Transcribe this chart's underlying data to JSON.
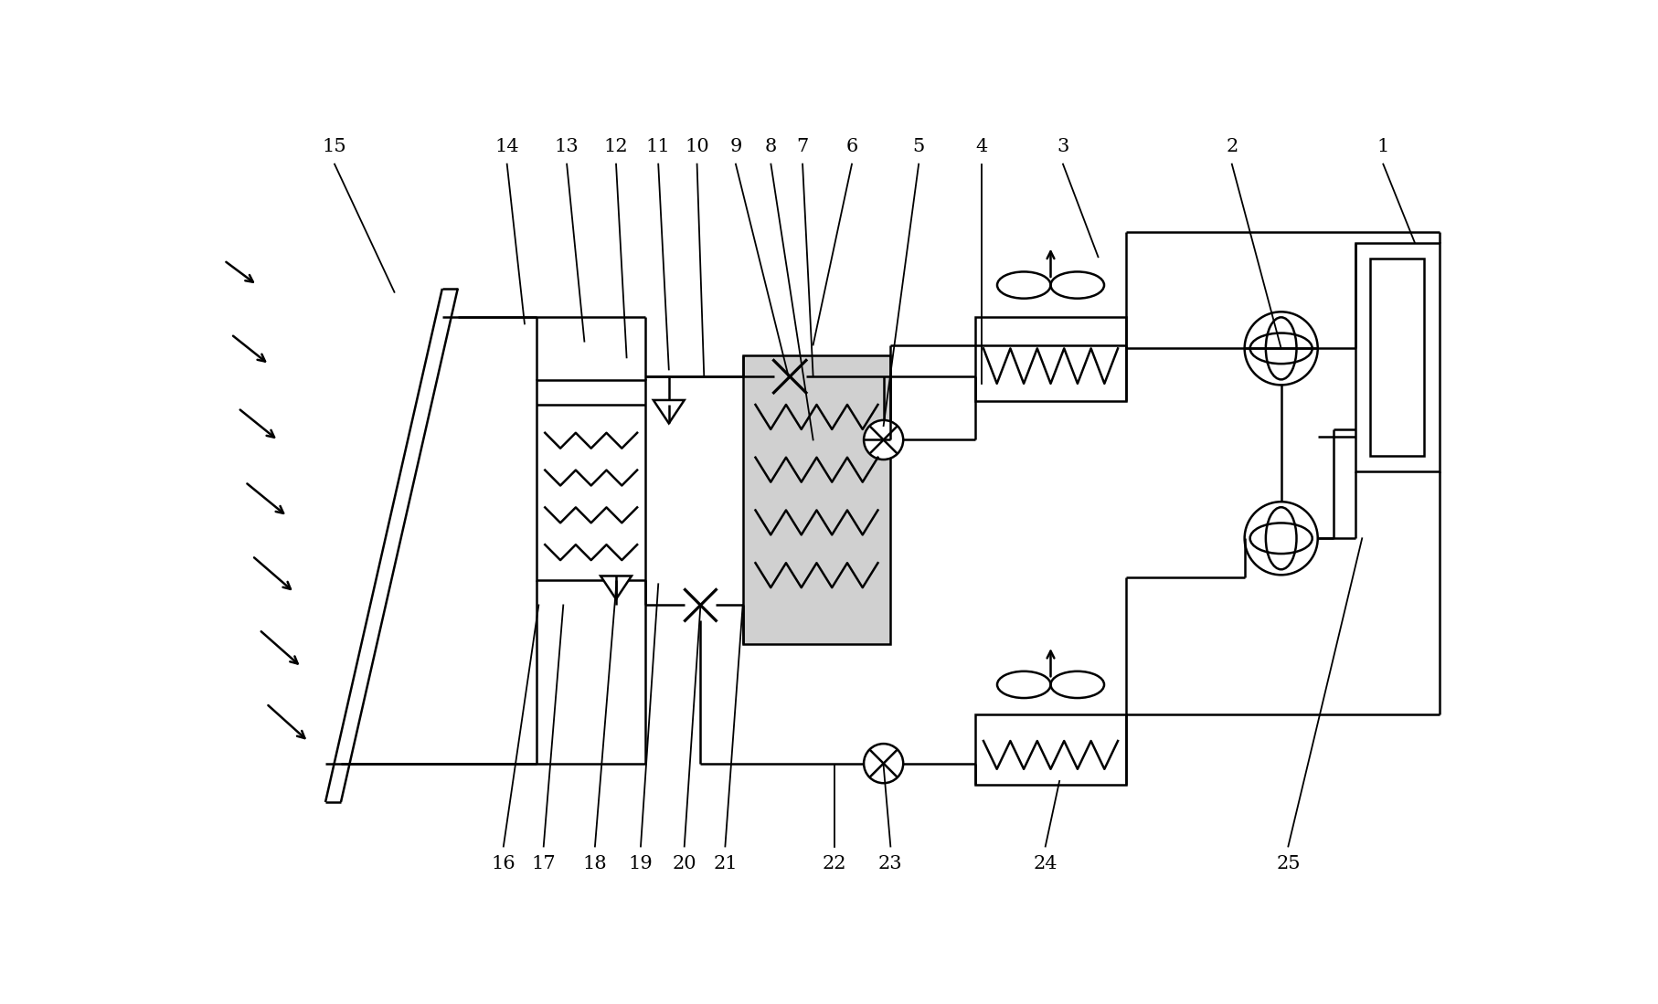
{
  "bg": "#ffffff",
  "lc": "#000000",
  "lw": 1.8,
  "fs": 15,
  "fw": 18.14,
  "fh": 10.99,
  "dpi": 100,
  "solar_arrows": [
    [
      0.18,
      9.0,
      0.65,
      8.65
    ],
    [
      0.28,
      7.95,
      0.82,
      7.52
    ],
    [
      0.38,
      6.9,
      0.95,
      6.44
    ],
    [
      0.48,
      5.85,
      1.08,
      5.36
    ],
    [
      0.58,
      4.8,
      1.18,
      4.28
    ],
    [
      0.68,
      3.75,
      1.28,
      3.22
    ],
    [
      0.78,
      2.7,
      1.38,
      2.16
    ]
  ],
  "top_labels": [
    [
      "15",
      1.75,
      10.62,
      2.6,
      8.55
    ],
    [
      "14",
      4.2,
      10.62,
      4.45,
      8.1
    ],
    [
      "13",
      5.05,
      10.62,
      5.3,
      7.85
    ],
    [
      "12",
      5.75,
      10.62,
      5.9,
      7.62
    ],
    [
      "11",
      6.35,
      10.62,
      6.5,
      7.45
    ],
    [
      "10",
      6.9,
      10.62,
      7.0,
      7.35
    ],
    [
      "9",
      7.45,
      10.62,
      8.2,
      7.35
    ],
    [
      "8",
      7.95,
      10.62,
      8.55,
      6.45
    ],
    [
      "7",
      8.4,
      10.62,
      8.55,
      7.35
    ],
    [
      "6",
      9.1,
      10.62,
      8.55,
      7.8
    ],
    [
      "5",
      10.05,
      10.62,
      9.55,
      6.65
    ],
    [
      "4",
      10.95,
      10.62,
      10.95,
      7.25
    ],
    [
      "3",
      12.1,
      10.62,
      12.6,
      9.05
    ],
    [
      "2",
      14.5,
      10.62,
      15.2,
      7.75
    ],
    [
      "1",
      16.65,
      10.62,
      17.1,
      9.25
    ]
  ],
  "bot_labels": [
    [
      "16",
      4.15,
      0.42,
      4.65,
      4.1
    ],
    [
      "17",
      4.72,
      0.42,
      5.0,
      4.1
    ],
    [
      "18",
      5.45,
      0.42,
      5.75,
      4.35
    ],
    [
      "19",
      6.1,
      0.42,
      6.35,
      4.4
    ],
    [
      "20",
      6.72,
      0.42,
      6.95,
      4.1
    ],
    [
      "21",
      7.3,
      0.42,
      7.55,
      4.1
    ],
    [
      "22",
      8.85,
      0.42,
      8.85,
      1.82
    ],
    [
      "23",
      9.65,
      0.42,
      9.55,
      1.82
    ],
    [
      "24",
      11.85,
      0.42,
      12.05,
      1.6
    ],
    [
      "25",
      15.3,
      0.42,
      16.35,
      5.05
    ]
  ]
}
